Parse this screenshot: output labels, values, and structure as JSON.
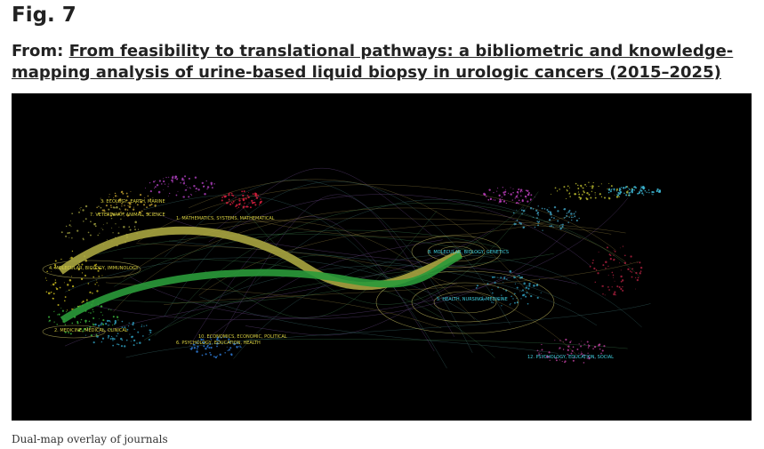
{
  "figure": {
    "label": "Fig. 7",
    "from_prefix": "From:",
    "article_title": "From feasibility to translational pathways: a bibliometric and knowledge-mapping analysis of urine-based liquid biopsy in urologic cancers (2015–2025)",
    "caption": "Dual-map overlay of journals",
    "map_labels": [
      "1. MATHEMATICS, SYSTEMS, MATHEMATICAL",
      "3. ECOLOGY, EARTH, MARINE",
      "7. VETERINARY, ANIMAL, SCIENCE",
      "4. MOLECULAR, BIOLOGY, IMMUNOLOGY",
      "2. MEDICINE, MEDICAL, CLINICAL",
      "6. PSYCHOLOGY, EDUCATION, HEALTH",
      "10. ECONOMICS, ECONOMIC, POLITICAL",
      "8. MOLECULAR, BIOLOGY, GENETICS",
      "5. HEALTH, NURSING, MEDICINE",
      "12. PSYCHOLOGY, EDUCATION, SOCIAL"
    ]
  }
}
